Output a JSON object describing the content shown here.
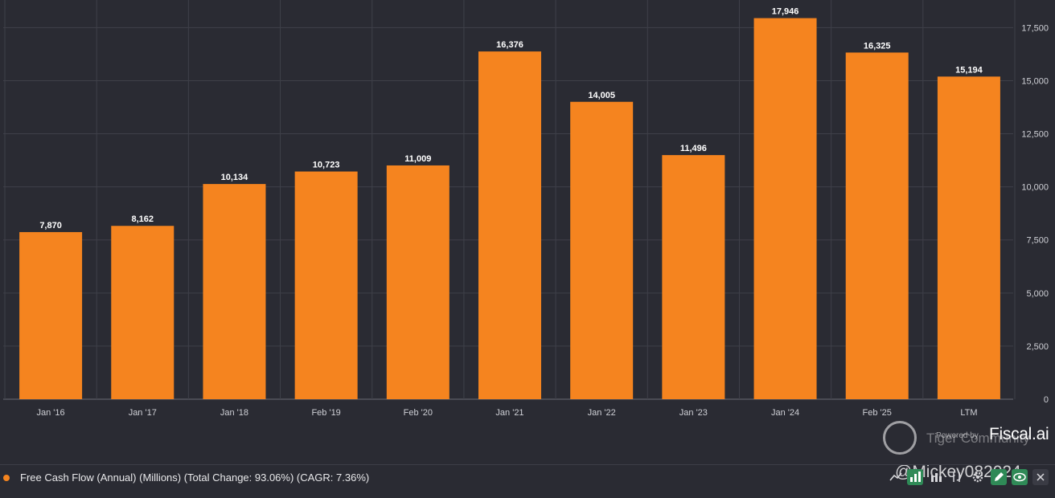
{
  "chart_data": {
    "type": "bar",
    "categories": [
      "Jan '16",
      "Jan '17",
      "Jan '18",
      "Feb '19",
      "Feb '20",
      "Jan '21",
      "Jan '22",
      "Jan '23",
      "Jan '24",
      "Feb '25",
      "LTM"
    ],
    "series": [
      {
        "values": [
          7870,
          8162,
          10134,
          10723,
          11009,
          16376,
          14005,
          11496,
          17946,
          16325,
          15194
        ]
      }
    ],
    "data_labels": [
      "7,870",
      "8,162",
      "10,134",
      "10,723",
      "11,009",
      "16,376",
      "14,005",
      "11,496",
      "17,946",
      "16,325",
      "15,194"
    ],
    "y_ticks": [
      0,
      2500,
      5000,
      7500,
      10000,
      12500,
      15000,
      17500
    ],
    "y_tick_labels": [
      "0",
      "2,500",
      "5,000",
      "7,500",
      "10,000",
      "12,500",
      "15,000",
      "17,500"
    ],
    "ylim": [
      0,
      18800
    ],
    "y_axis_side": "right",
    "grid": true,
    "bar_color": "#f5841f",
    "background_color": "#2a2b33",
    "grid_color": "#3f4049"
  },
  "legend": {
    "label": "Free Cash Flow (Annual) (Millions) (Total Change: 93.06%) (CAGR: 7.36%)",
    "color": "#f5841f"
  },
  "branding": {
    "powered_by": "Powered by",
    "name": "Fiscal.ai"
  },
  "watermark": {
    "community": "Tiger Community",
    "handle": "@Mickey082024"
  },
  "toolbar": {
    "icons": [
      "line-chart-icon",
      "bar-chart-icon",
      "stacked-bar-icon",
      "sliders-icon",
      "settings-icon",
      "pencil-icon",
      "eye-icon",
      "close-icon"
    ],
    "active_color": "#2f8a57"
  }
}
